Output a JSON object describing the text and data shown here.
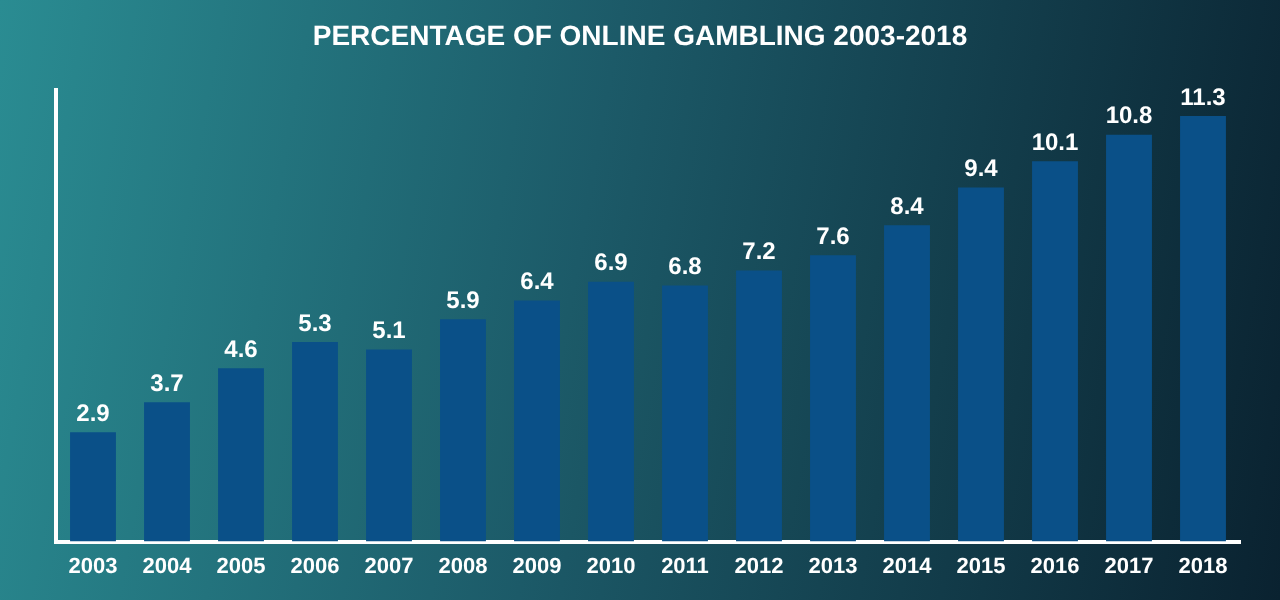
{
  "chart_data": {
    "type": "bar",
    "title": "PERCENTAGE OF ONLINE GAMBLING 2003-2018",
    "categories": [
      "2003",
      "2004",
      "2005",
      "2006",
      "2007",
      "2008",
      "2009",
      "2010",
      "2011",
      "2012",
      "2013",
      "2014",
      "2015",
      "2016",
      "2017",
      "2018"
    ],
    "values": [
      2.9,
      3.7,
      4.6,
      5.3,
      5.1,
      5.9,
      6.4,
      6.9,
      6.8,
      7.2,
      7.6,
      8.4,
      9.4,
      10.1,
      10.8,
      11.3
    ],
    "color": "#0a5088",
    "data_labels": true,
    "grid": false,
    "legend": false
  }
}
